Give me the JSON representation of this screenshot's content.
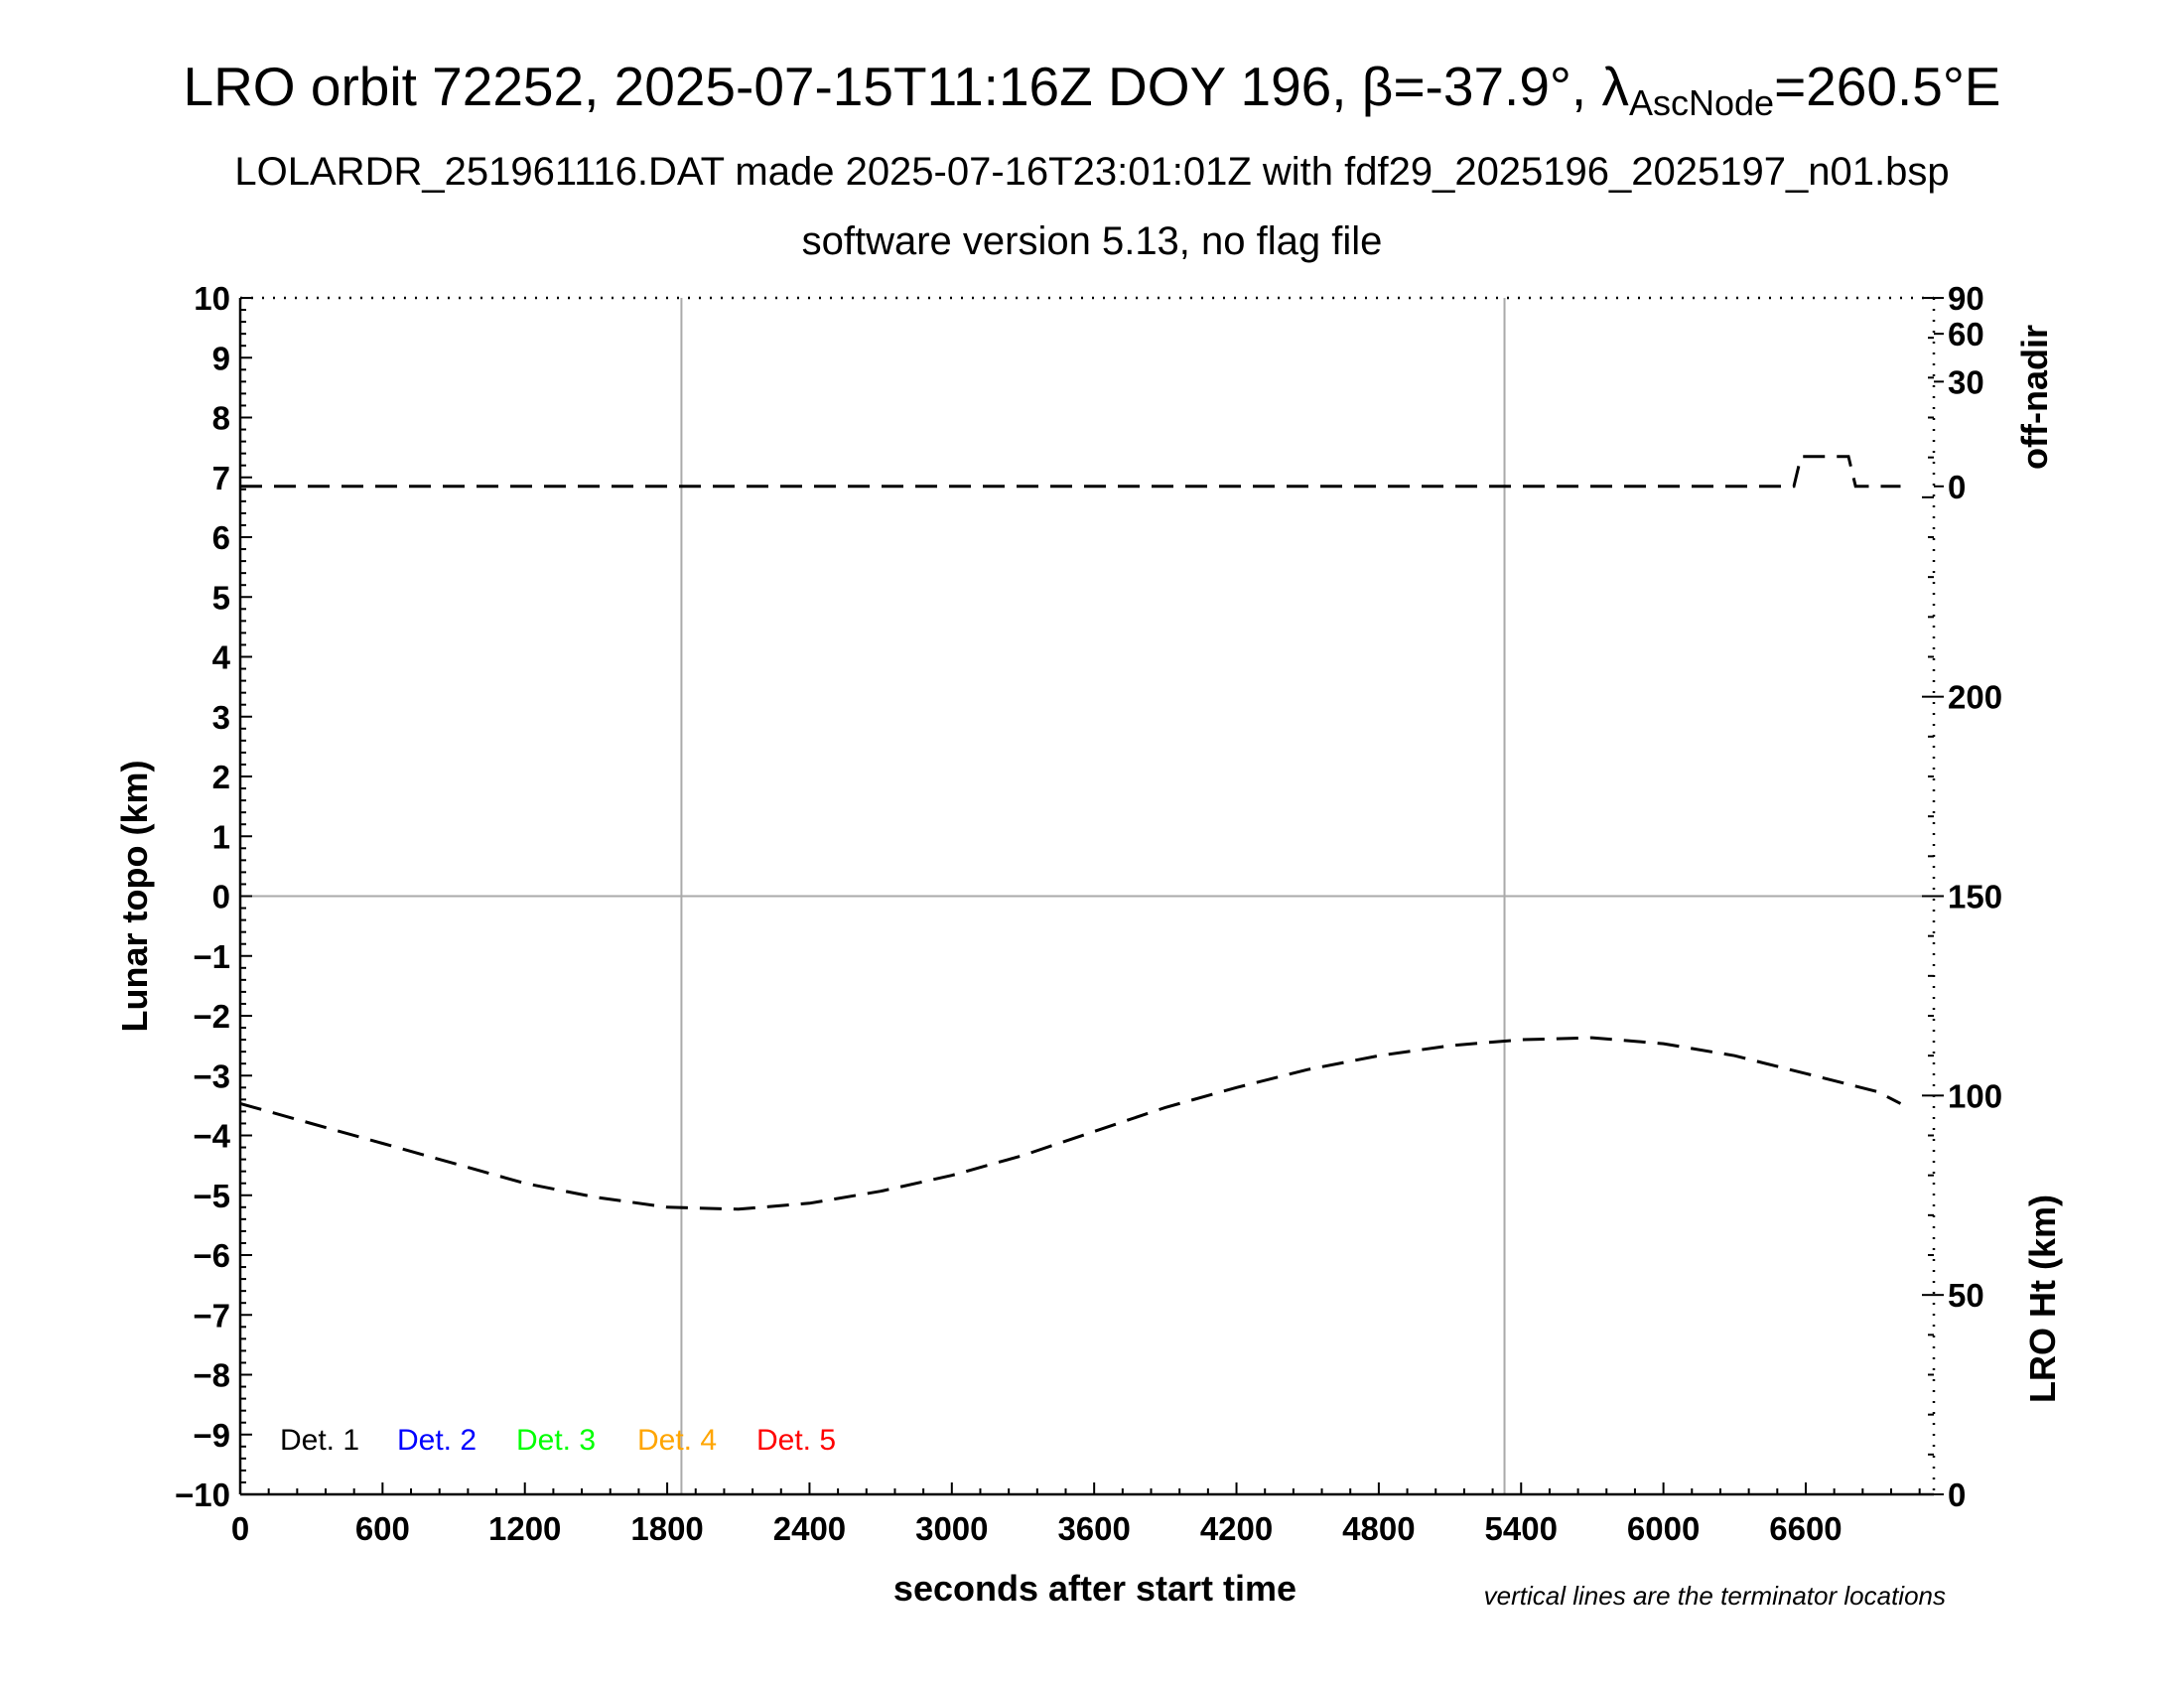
{
  "header": {
    "title_main": "LRO orbit 72252, 2025-07-15T11:16Z DOY 196, β=-37.9°, λ",
    "title_sub": "AscNode",
    "title_end": "=260.5°E",
    "line2": "LOLARDR_251961116.DAT made 2025-07-16T23:01:01Z with fdf29_2025196_2025197_n01.bsp",
    "line3": "software version 5.13, no flag file"
  },
  "chart_data": {
    "type": "line",
    "xlabel": "seconds after start time",
    "ylabel": "Lunar topo (km)",
    "xlim": [
      0,
      7140
    ],
    "ylim": [
      -10,
      10
    ],
    "x_ticks": [
      0,
      600,
      1200,
      1800,
      2400,
      3000,
      3600,
      4200,
      4800,
      5400,
      6000,
      6600
    ],
    "y_ticks": [
      10,
      9,
      8,
      7,
      6,
      5,
      4,
      3,
      2,
      1,
      0,
      -1,
      -2,
      -3,
      -4,
      -5,
      -6,
      -7,
      -8,
      -9,
      -10
    ],
    "y_tick_labels": [
      "10",
      "9",
      "8",
      "7",
      "6",
      "5",
      "4",
      "3",
      "2",
      "1",
      "0",
      "−1",
      "−2",
      "−3",
      "−4",
      "−5",
      "−6",
      "−7",
      "−8",
      "−9",
      "−10"
    ],
    "terminator_lines_x": [
      1860,
      5330
    ],
    "right_axis_top": {
      "label": "off-nadir",
      "ticks": [
        {
          "label": "90",
          "topo": 10
        },
        {
          "label": "60",
          "topo": 9.4
        },
        {
          "label": "30",
          "topo": 8.6
        },
        {
          "label": "0",
          "topo": 6.85
        }
      ]
    },
    "right_axis_bottom": {
      "label": "LRO Ht (km)",
      "ticks": [
        0,
        50,
        100,
        150,
        200
      ],
      "range": [
        0,
        300
      ]
    },
    "series": [
      {
        "axis": "off-nadir",
        "style": "dashed",
        "color": "#000000",
        "points": [
          [
            0,
            6.85
          ],
          [
            6550,
            6.85
          ],
          [
            6580,
            7.35
          ],
          [
            6780,
            7.35
          ],
          [
            6810,
            6.85
          ],
          [
            7000,
            6.85
          ]
        ]
      },
      {
        "axis": "LRO Ht (km)",
        "style": "dashed",
        "color": "#000000",
        "points": [
          [
            0,
            98
          ],
          [
            300,
            93
          ],
          [
            600,
            88
          ],
          [
            900,
            83
          ],
          [
            1200,
            78
          ],
          [
            1500,
            74.5
          ],
          [
            1800,
            72
          ],
          [
            2100,
            71.5
          ],
          [
            2400,
            73
          ],
          [
            2700,
            76
          ],
          [
            3000,
            80
          ],
          [
            3300,
            85
          ],
          [
            3600,
            91
          ],
          [
            3900,
            97
          ],
          [
            4200,
            102
          ],
          [
            4500,
            106.5
          ],
          [
            4800,
            110
          ],
          [
            5100,
            112.5
          ],
          [
            5400,
            114
          ],
          [
            5700,
            114.5
          ],
          [
            6000,
            113
          ],
          [
            6300,
            110
          ],
          [
            6600,
            105.5
          ],
          [
            6900,
            101
          ],
          [
            7000,
            98
          ]
        ]
      }
    ],
    "legend": [
      {
        "label": "Det. 1",
        "color": "#000000"
      },
      {
        "label": "Det. 2",
        "color": "#0000ff"
      },
      {
        "label": "Det. 3",
        "color": "#00ff00"
      },
      {
        "label": "Det. 4",
        "color": "#ffa500"
      },
      {
        "label": "Det. 5",
        "color": "#ff0000"
      }
    ],
    "note": "vertical lines are the terminator locations",
    "grid": "terminator lines and zero line only"
  }
}
